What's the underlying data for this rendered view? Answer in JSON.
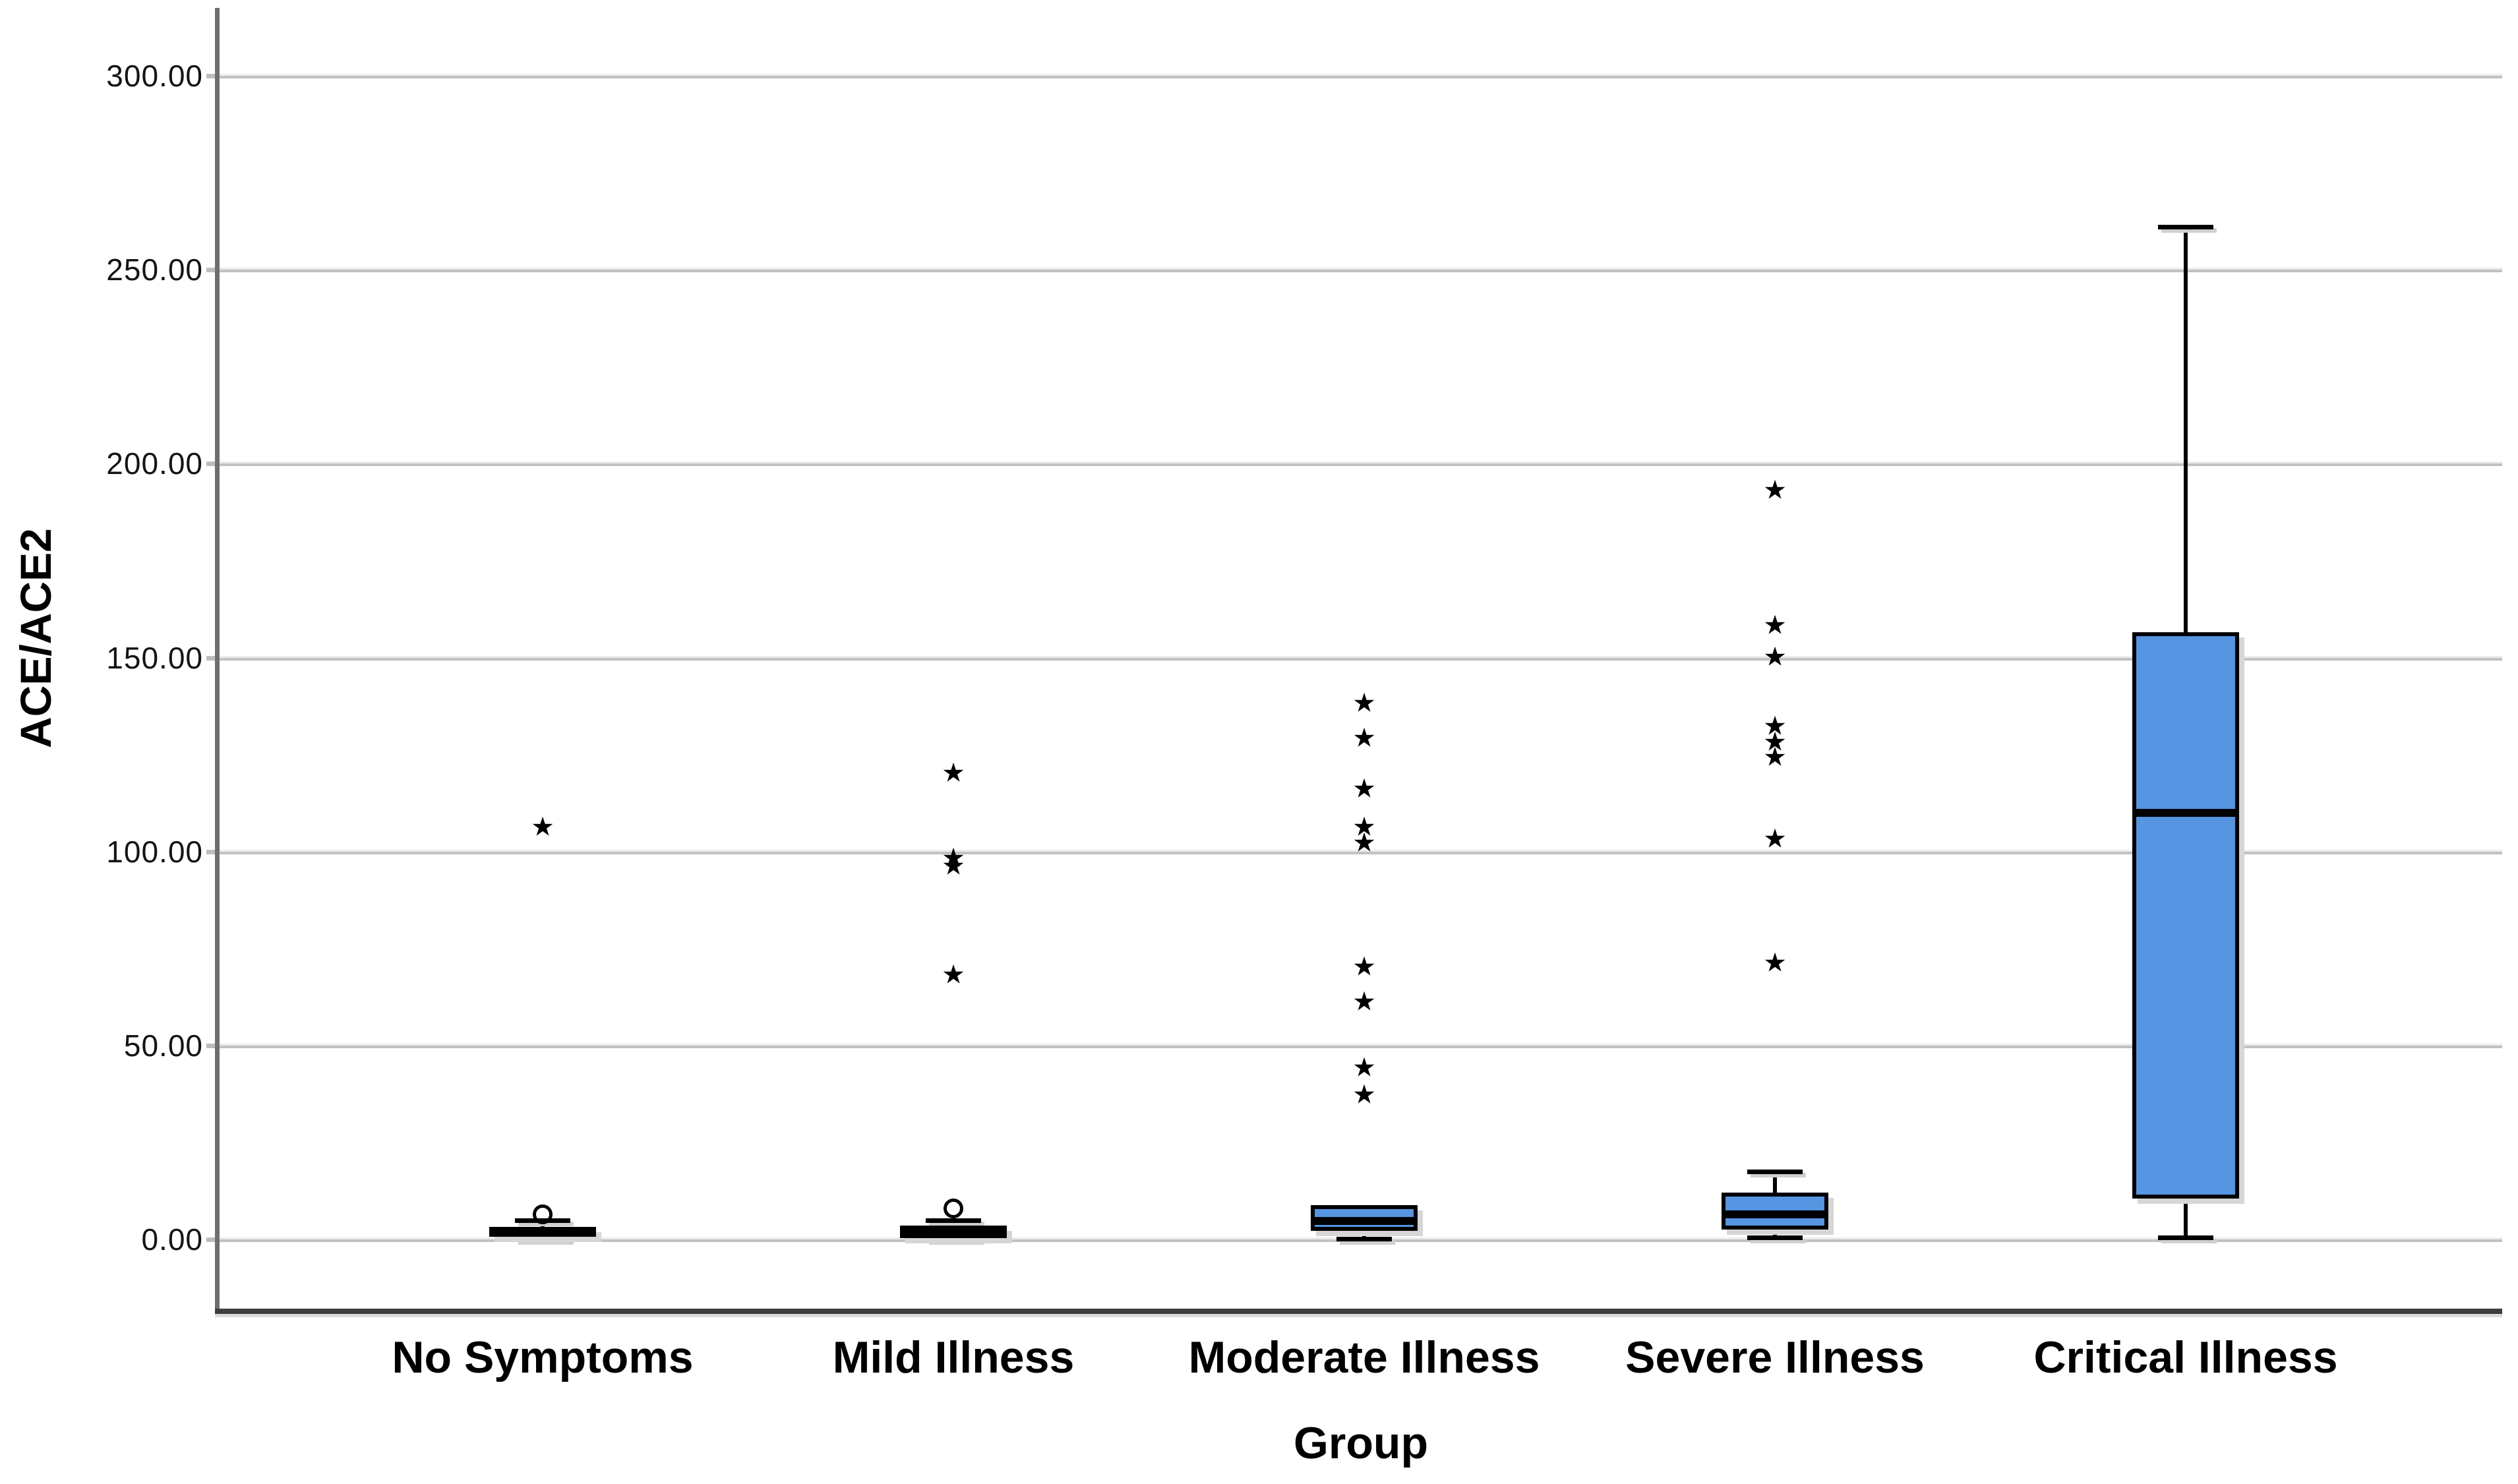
{
  "chart_data": {
    "type": "boxplot",
    "title": "",
    "xlabel": "Group",
    "ylabel": "ACE/ACE2",
    "ylim": [
      -16,
      318
    ],
    "grid": "horizontal gridlines at each y tick",
    "legend_position": "none",
    "y_ticks": [
      {
        "value": 0,
        "label": "0.00"
      },
      {
        "value": 50,
        "label": "50.00"
      },
      {
        "value": 100,
        "label": "100.00"
      },
      {
        "value": 150,
        "label": "150.00"
      },
      {
        "value": 200,
        "label": "200.00"
      },
      {
        "value": 250,
        "label": "250.00"
      },
      {
        "value": 300,
        "label": "300.00"
      }
    ],
    "categories": [
      "No Symptoms",
      "Mild Illness",
      "Moderate Illness",
      "Severe Illness",
      "Critical Illness"
    ],
    "boxes": [
      {
        "category": "No Symptoms",
        "whisker_low": 0.1,
        "q1": 0.6,
        "median": 1.8,
        "q3": 3.3,
        "whisker_high": 5.0,
        "outliers_mild": [
          6.5
        ],
        "outliers_extreme": [
          106
        ]
      },
      {
        "category": "Mild Illness",
        "whisker_low": 0.1,
        "q1": 0.4,
        "median": 1.6,
        "q3": 3.5,
        "whisker_high": 5.0,
        "outliers_mild": [
          8
        ],
        "outliers_extreme": [
          68,
          96,
          98,
          120
        ]
      },
      {
        "category": "Moderate Illness",
        "whisker_low": 0.2,
        "q1": 2.2,
        "median": 4.8,
        "q3": 8.9,
        "whisker_high": 8.9,
        "outliers_mild": [],
        "outliers_extreme": [
          37,
          44,
          61,
          70,
          102,
          106,
          116,
          129,
          138
        ]
      },
      {
        "category": "Severe Illness",
        "whisker_low": 0.5,
        "q1": 2.5,
        "median": 6.5,
        "q3": 12,
        "whisker_high": 17.5,
        "outliers_mild": [],
        "outliers_extreme": [
          71,
          103,
          124,
          128,
          132,
          150,
          158,
          193
        ]
      },
      {
        "category": "Critical Illness",
        "whisker_low": 0.5,
        "q1": 10.5,
        "median": 110,
        "q3": 156.5,
        "whisker_high": 261,
        "outliers_mild": [],
        "outliers_extreme": []
      }
    ],
    "markers": {
      "extreme_outlier": "star",
      "mild_outlier": "circle"
    },
    "style": {
      "box_fill": "#5595E2",
      "box_border": "#000000",
      "median_color": "#000000",
      "whisker_color": "#000000",
      "gridline_color": "#c2c2c2",
      "y_axis_color": "#6e6e6e",
      "x_axis_color": "#3d3d3d",
      "background": "#ffffff"
    }
  }
}
